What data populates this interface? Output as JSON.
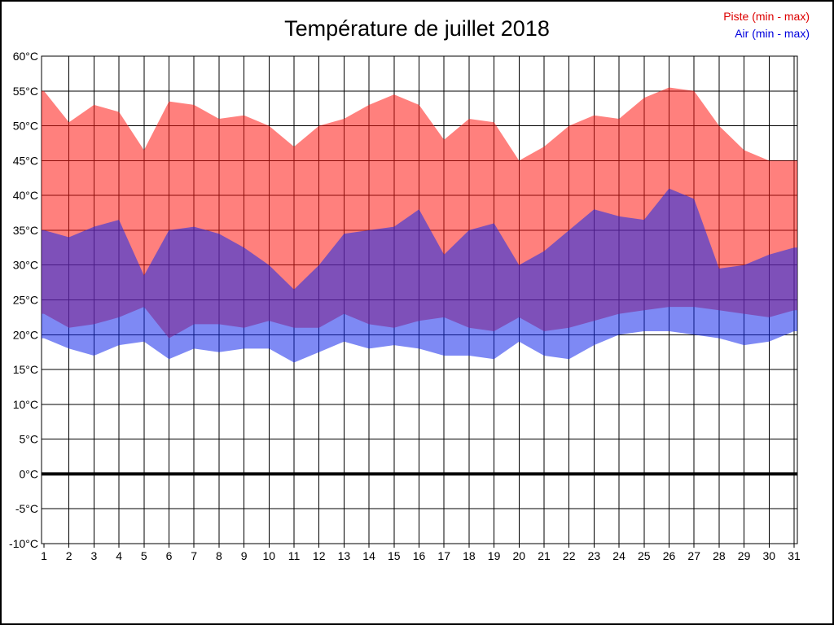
{
  "title": "Température de juillet 2018",
  "legend": {
    "piste_label": "Piste (min - max)",
    "piste_color": "#dd0000",
    "air_label": "Air (min - max)",
    "air_color": "#0000dd"
  },
  "chart_data": {
    "type": "area",
    "title": "Température de juillet 2018",
    "xlabel": "",
    "ylabel": "",
    "x": [
      1,
      2,
      3,
      4,
      5,
      6,
      7,
      8,
      9,
      10,
      11,
      12,
      13,
      14,
      15,
      16,
      17,
      18,
      19,
      20,
      21,
      22,
      23,
      24,
      25,
      26,
      27,
      28,
      29,
      30,
      31
    ],
    "ylim": [
      -10,
      60
    ],
    "ytick_step": 5,
    "ytick_labels": [
      "60°C",
      "55°C",
      "50°C",
      "45°C",
      "40°C",
      "35°C",
      "30°C",
      "25°C",
      "20°C",
      "15°C",
      "10°C",
      "5°C",
      "0°C",
      "-5°C",
      "-10°C"
    ],
    "grid": true,
    "legend_position": "top-right",
    "series": [
      {
        "name": "piste_max",
        "label": "Piste max",
        "values": [
          55,
          50.5,
          53,
          52,
          46.5,
          53.5,
          53,
          51,
          51.5,
          50,
          47,
          50,
          51,
          53,
          54.5,
          53,
          48,
          51,
          50.5,
          45,
          47,
          50,
          51.5,
          51,
          54,
          55.5,
          55,
          50,
          46.5,
          45,
          45
        ]
      },
      {
        "name": "piste_min",
        "label": "Piste min",
        "values": [
          23,
          21,
          21.5,
          22.5,
          24,
          19.5,
          21.5,
          21.5,
          21,
          22,
          21,
          21,
          23,
          21.5,
          21,
          22,
          22.5,
          21,
          20.5,
          22.5,
          20.5,
          21,
          22,
          23,
          23.5,
          24,
          24,
          23.5,
          23,
          22.5,
          23.5
        ]
      },
      {
        "name": "air_max",
        "label": "Air max",
        "values": [
          35,
          34,
          35.5,
          36.5,
          28.5,
          35,
          35.5,
          34.5,
          32.5,
          30,
          26.5,
          30,
          34.5,
          35,
          35.5,
          38,
          31.5,
          35,
          36,
          30,
          32,
          35,
          38,
          37,
          36.5,
          41,
          39.5,
          29.5,
          30,
          31.5,
          32.5
        ]
      },
      {
        "name": "air_min",
        "label": "Air min",
        "values": [
          19.5,
          18,
          17,
          18.5,
          19,
          16.5,
          18,
          17.5,
          18,
          18,
          16,
          17.5,
          19,
          18,
          18.5,
          18,
          17,
          17,
          16.5,
          19,
          17,
          16.5,
          18.5,
          20,
          20.5,
          20.5,
          20,
          19.5,
          18.5,
          19,
          20.5
        ]
      }
    ],
    "bands": [
      {
        "name": "piste-band",
        "label": "Piste (min - max)",
        "top": "piste_max",
        "bottom": "piste_min",
        "fill": "#ff1712",
        "opacity": 0.55
      },
      {
        "name": "air-band",
        "label": "Air (min - max)",
        "top": "air_max",
        "bottom": "air_min",
        "fill": "#1428eb",
        "opacity": 0.55
      }
    ],
    "zero_line": {
      "temp": 0,
      "width": 4,
      "color": "#000000"
    }
  }
}
